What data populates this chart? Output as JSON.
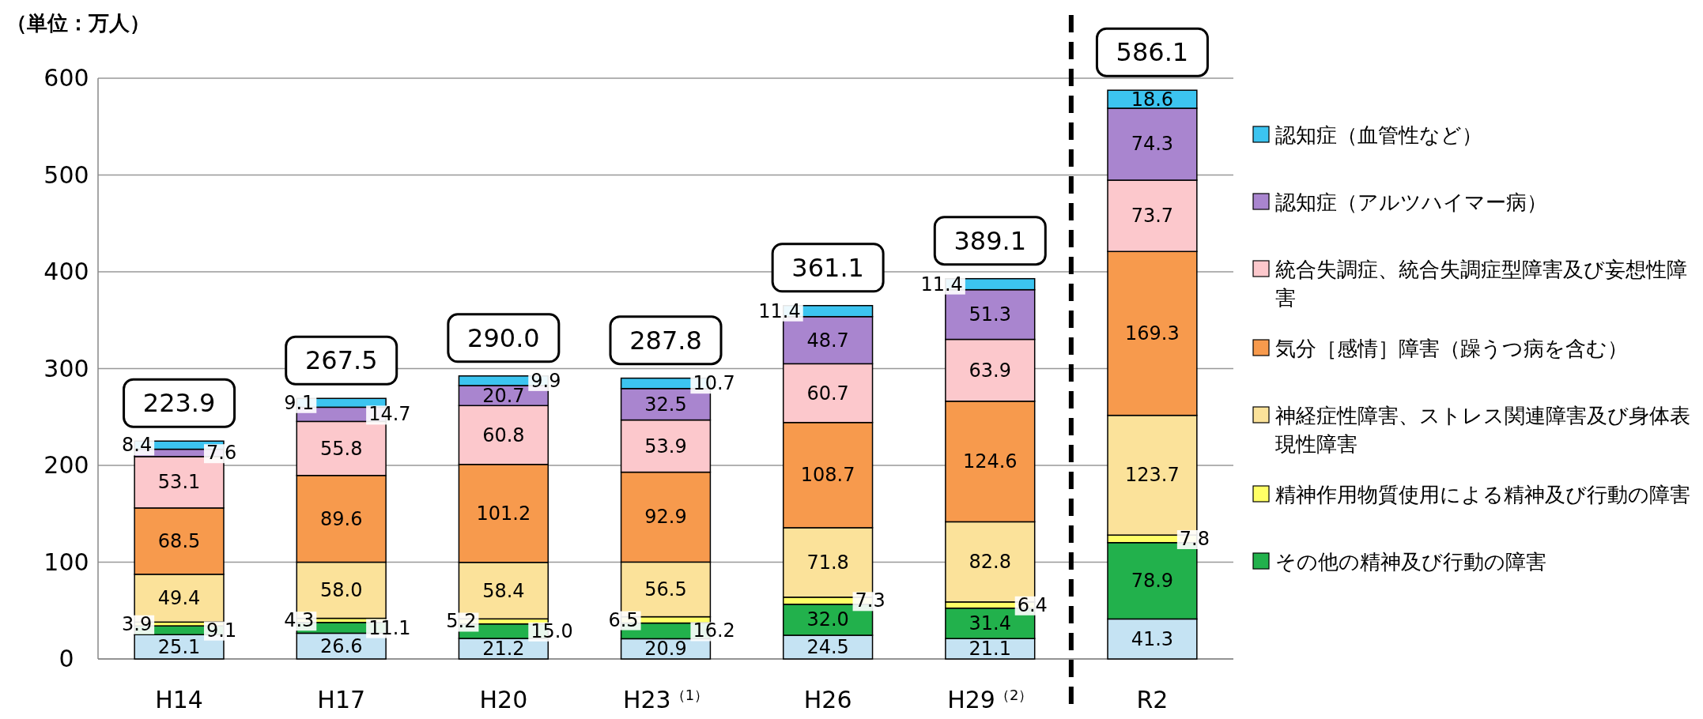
{
  "chart_data": {
    "type": "bar",
    "stacked": true,
    "ylabel": "（単位：万人）",
    "categories": [
      "H14",
      "H17",
      "H20",
      "H23$^{（1）}$",
      "H26",
      "H29$^{（2）}$",
      "R2"
    ],
    "series": [
      {
        "color": "#c5e3f3",
        "values": [
          25.1,
          26.6,
          21.2,
          20.9,
          24.5,
          21.1,
          41.3
        ],
        "value_labels": [
          "25.1",
          "26.6",
          "21.2",
          "20.9",
          "24.5",
          "21.1",
          "41.3"
        ]
      },
      {
        "name": "その他の精神及び行動の障害",
        "color": "#22b14c",
        "values": [
          9.1,
          11.1,
          15.0,
          16.2,
          32.0,
          31.4,
          78.9
        ],
        "value_labels": [
          "9.1",
          "11.1",
          "15.0",
          "16.2",
          "32.0",
          "31.4",
          "78.9"
        ]
      },
      {
        "name": "精神作用物質使用による精神及び行動の障害",
        "color": "#ffff66",
        "values": [
          3.9,
          4.3,
          5.2,
          6.5,
          7.3,
          6.4,
          7.8
        ],
        "value_labels": [
          "3.9",
          "4.3",
          "5.2",
          "6.5",
          "7.3",
          "6.4",
          "7.8"
        ]
      },
      {
        "name": "神経症性障害、ストレス関連障害及び身体表現性障害",
        "color": "#fbe29a",
        "values": [
          49.4,
          58.0,
          58.4,
          56.5,
          71.8,
          82.8,
          123.7
        ],
        "value_labels": [
          "49.4",
          "58.0",
          "58.4",
          "56.5",
          "71.8",
          "82.8",
          "123.7"
        ]
      },
      {
        "name": "気分［感情］障害（躁うつ病を含む）",
        "color": "#f79a4d",
        "values": [
          68.5,
          89.6,
          101.2,
          92.9,
          108.7,
          124.6,
          169.3
        ],
        "value_labels": [
          "68.5",
          "89.6",
          "101.2",
          "92.9",
          "108.7",
          "124.6",
          "169.3"
        ]
      },
      {
        "name": "統合失調症、統合失調症型障害及び妄想性障害",
        "color": "#fcc8cc",
        "values": [
          53.1,
          55.8,
          60.8,
          53.9,
          60.7,
          63.9,
          73.7
        ],
        "value_labels": [
          "53.1",
          "55.8",
          "60.8",
          "53.9",
          "60.7",
          "63.9",
          "73.7"
        ]
      },
      {
        "name": "認知症（アルツハイマー病）",
        "color": "#a985cf",
        "values": [
          7.6,
          14.7,
          20.7,
          32.5,
          48.7,
          51.3,
          74.3
        ],
        "value_labels": [
          "7.6",
          "14.7",
          "20.7",
          "32.5",
          "48.7",
          "51.3",
          "74.3"
        ]
      },
      {
        "name": "認知症（血管性など）",
        "color": "#3cc4f0",
        "values": [
          8.4,
          9.1,
          9.9,
          10.7,
          11.4,
          11.4,
          18.6
        ],
        "value_labels": [
          "8.4",
          "9.1",
          "9.9",
          "10.7",
          "11.4",
          "11.4",
          "18.6"
        ]
      }
    ],
    "annotations": [
      "223.9",
      "267.5",
      "290.0",
      "287.8",
      "361.1",
      "389.1",
      "586.1"
    ],
    "ylim": [
      0,
      600
    ],
    "yticks": [
      0,
      100,
      200,
      300,
      400,
      500,
      600
    ],
    "grid": "y",
    "legend": "right"
  }
}
